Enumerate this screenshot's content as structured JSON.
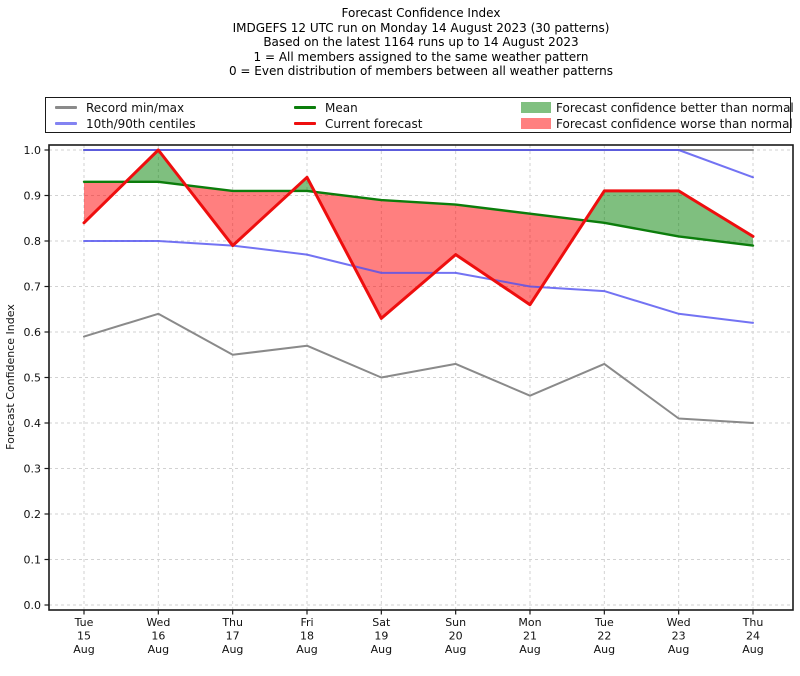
{
  "title": {
    "lines": [
      "Forecast Confidence Index",
      "IMDGEFS 12 UTC run on Monday 14 August 2023 (30 patterns)",
      "Based on the latest 1164 runs up to 14 August 2023",
      "1 = All members assigned to the same weather pattern",
      "0 = Even distribution of members between all weather patterns"
    ]
  },
  "legend": {
    "items": [
      {
        "label": "Record min/max",
        "swatch": "line",
        "color": "#8a8a8a"
      },
      {
        "label": "10th/90th centiles",
        "swatch": "line",
        "color": "#8383f2"
      },
      {
        "label": "Mean",
        "swatch": "line",
        "color": "#0b7d0b"
      },
      {
        "label": "Current forecast",
        "swatch": "line",
        "color": "#ee0e0e"
      },
      {
        "label": "Forecast confidence better than normal",
        "swatch": "patch",
        "color": "#80c080"
      },
      {
        "label": "Forecast confidence worse than normal",
        "swatch": "patch",
        "color": "#ff8080"
      }
    ]
  },
  "chart_data": {
    "type": "line",
    "title": "Forecast Confidence Index",
    "ylabel": "Forecast Confidence Index",
    "xlabel": "",
    "ylim": [
      0.0,
      1.0
    ],
    "yticks": [
      0.0,
      0.1,
      0.2,
      0.3,
      0.4,
      0.5,
      0.6,
      0.7,
      0.8,
      0.9,
      1.0
    ],
    "grid": "dashed",
    "legend_position": "top",
    "categories": [
      [
        "Tue",
        "15",
        "Aug"
      ],
      [
        "Wed",
        "16",
        "Aug"
      ],
      [
        "Thu",
        "17",
        "Aug"
      ],
      [
        "Fri",
        "18",
        "Aug"
      ],
      [
        "Sat",
        "19",
        "Aug"
      ],
      [
        "Sun",
        "20",
        "Aug"
      ],
      [
        "Mon",
        "21",
        "Aug"
      ],
      [
        "Tue",
        "22",
        "Aug"
      ],
      [
        "Wed",
        "23",
        "Aug"
      ],
      [
        "Thu",
        "24",
        "Aug"
      ]
    ],
    "series": [
      {
        "name": "Record max",
        "legend": "Record min/max",
        "color": "#8a8a8a",
        "width": 2,
        "values": [
          1.0,
          1.0,
          1.0,
          1.0,
          1.0,
          1.0,
          1.0,
          1.0,
          1.0,
          1.0
        ]
      },
      {
        "name": "Record min",
        "legend": "Record min/max",
        "color": "#8a8a8a",
        "width": 2,
        "values": [
          0.59,
          0.64,
          0.55,
          0.57,
          0.5,
          0.53,
          0.46,
          0.53,
          0.41,
          0.4
        ]
      },
      {
        "name": "90th centile",
        "legend": "10th/90th centiles",
        "color": "#5050f0",
        "width": 2,
        "opacity": 0.8,
        "values": [
          1.0,
          1.0,
          1.0,
          1.0,
          1.0,
          1.0,
          1.0,
          1.0,
          1.0,
          0.94
        ]
      },
      {
        "name": "10th centile",
        "legend": "10th/90th centiles",
        "color": "#5050f0",
        "width": 2,
        "opacity": 0.8,
        "values": [
          0.8,
          0.8,
          0.79,
          0.77,
          0.73,
          0.73,
          0.7,
          0.69,
          0.64,
          0.62
        ]
      },
      {
        "name": "Mean",
        "legend": "Mean",
        "color": "#0b7d0b",
        "width": 2.4,
        "values": [
          0.93,
          0.93,
          0.91,
          0.91,
          0.89,
          0.88,
          0.86,
          0.84,
          0.81,
          0.79
        ]
      },
      {
        "name": "Current forecast",
        "legend": "Current forecast",
        "color": "#ee0e0e",
        "width": 3,
        "values": [
          0.84,
          1.0,
          0.79,
          0.94,
          0.63,
          0.77,
          0.66,
          0.91,
          0.91,
          0.81
        ]
      }
    ],
    "fills": {
      "between": [
        "Current forecast",
        "Mean"
      ],
      "above_label": "Forecast confidence better than normal",
      "above_color": "rgba(0,128,0,0.5)",
      "below_label": "Forecast confidence worse than normal",
      "below_color": "rgba(255,0,0,0.5)"
    }
  }
}
